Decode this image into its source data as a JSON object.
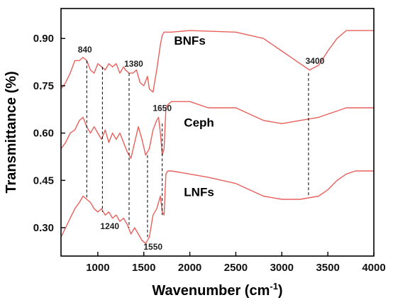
{
  "chart_data": {
    "type": "line",
    "xlabel": "Wavenumber (cm",
    "xlabel_superscript": "-1",
    "xlabel_suffix": ")",
    "ylabel": "Transmittance (%)",
    "xlim": [
      600,
      4000
    ],
    "ylim": [
      0.21,
      0.995
    ],
    "xticks": [
      1000,
      1500,
      2000,
      2500,
      3000,
      3500,
      4000
    ],
    "yticks": [
      0.3,
      0.45,
      0.6,
      0.75,
      0.9
    ],
    "ytick_labels": [
      "0.30",
      "0.45",
      "0.60",
      "0.75",
      "0.90"
    ],
    "grid": false,
    "line_color": "#e8605c",
    "series": [
      {
        "name": "BNFs",
        "x": [
          600,
          650,
          700,
          750,
          800,
          840,
          880,
          920,
          960,
          1000,
          1040,
          1080,
          1120,
          1160,
          1200,
          1240,
          1280,
          1300,
          1340,
          1380,
          1420,
          1460,
          1500,
          1540,
          1560,
          1600,
          1640,
          1680,
          1700,
          1720,
          1760,
          1800,
          2000,
          2500,
          2800,
          3000,
          3100,
          3200,
          3300,
          3400,
          3500,
          3600,
          3700,
          3800,
          4000
        ],
        "values": [
          0.74,
          0.76,
          0.79,
          0.83,
          0.83,
          0.84,
          0.83,
          0.8,
          0.79,
          0.82,
          0.81,
          0.8,
          0.82,
          0.81,
          0.82,
          0.79,
          0.81,
          0.8,
          0.79,
          0.79,
          0.8,
          0.76,
          0.75,
          0.78,
          0.74,
          0.73,
          0.8,
          0.88,
          0.91,
          0.92,
          0.92,
          0.92,
          0.925,
          0.92,
          0.9,
          0.86,
          0.84,
          0.82,
          0.8,
          0.815,
          0.86,
          0.9,
          0.925,
          0.925,
          0.925
        ]
      },
      {
        "name": "Ceph",
        "x": [
          600,
          650,
          700,
          750,
          800,
          840,
          880,
          920,
          960,
          1000,
          1040,
          1080,
          1120,
          1160,
          1200,
          1240,
          1280,
          1320,
          1360,
          1400,
          1440,
          1480,
          1520,
          1560,
          1600,
          1640,
          1660,
          1680,
          1700,
          1720,
          1740,
          1760,
          1800,
          2000,
          2200,
          2500,
          2800,
          3000,
          3200,
          3400,
          3500,
          3600,
          3700,
          3800,
          4000
        ],
        "values": [
          0.55,
          0.57,
          0.6,
          0.61,
          0.64,
          0.65,
          0.62,
          0.6,
          0.62,
          0.6,
          0.58,
          0.61,
          0.57,
          0.6,
          0.58,
          0.6,
          0.57,
          0.54,
          0.52,
          0.57,
          0.62,
          0.58,
          0.53,
          0.55,
          0.61,
          0.64,
          0.65,
          0.6,
          0.53,
          0.55,
          0.68,
          0.69,
          0.7,
          0.7,
          0.68,
          0.68,
          0.64,
          0.63,
          0.64,
          0.65,
          0.66,
          0.67,
          0.68,
          0.68,
          0.68
        ]
      },
      {
        "name": "LNFs",
        "x": [
          600,
          650,
          700,
          750,
          800,
          840,
          880,
          920,
          960,
          1000,
          1040,
          1080,
          1120,
          1160,
          1200,
          1240,
          1280,
          1320,
          1360,
          1400,
          1440,
          1480,
          1520,
          1560,
          1600,
          1640,
          1660,
          1680,
          1700,
          1720,
          1740,
          1760,
          1800,
          2000,
          2200,
          2500,
          2800,
          3000,
          3200,
          3400,
          3500,
          3600,
          3700,
          3800,
          4000
        ],
        "values": [
          0.27,
          0.3,
          0.33,
          0.36,
          0.38,
          0.4,
          0.39,
          0.38,
          0.36,
          0.35,
          0.36,
          0.34,
          0.35,
          0.33,
          0.34,
          0.32,
          0.33,
          0.31,
          0.28,
          0.3,
          0.28,
          0.26,
          0.25,
          0.27,
          0.34,
          0.36,
          0.38,
          0.4,
          0.35,
          0.34,
          0.47,
          0.48,
          0.48,
          0.47,
          0.46,
          0.44,
          0.4,
          0.39,
          0.39,
          0.4,
          0.42,
          0.45,
          0.47,
          0.48,
          0.48
        ]
      }
    ],
    "series_label_positions": [
      {
        "text": "BNFs",
        "x": 2000,
        "y": 0.88
      },
      {
        "text": "Ceph",
        "x": 2100,
        "y": 0.62
      },
      {
        "text": "LNFs",
        "x": 2100,
        "y": 0.4
      }
    ],
    "peak_markers": [
      {
        "x": 880,
        "y_top": 0.83,
        "y_bottom": 0.39
      },
      {
        "x": 1050,
        "y_top": 0.81,
        "y_bottom": 0.35
      },
      {
        "x": 1340,
        "y_top": 0.79,
        "y_bottom": 0.3
      },
      {
        "x": 1540,
        "y_top": 0.53,
        "y_bottom": 0.27
      },
      {
        "x": 1700,
        "y_top": 0.63,
        "y_bottom": 0.34
      },
      {
        "x": 3290,
        "y_top": 0.79,
        "y_bottom": 0.4
      }
    ],
    "peak_labels": [
      {
        "text": "840",
        "x": 860,
        "y": 0.855
      },
      {
        "text": "1380",
        "x": 1390,
        "y": 0.81
      },
      {
        "text": "1650",
        "x": 1700,
        "y": 0.67
      },
      {
        "text": "3400",
        "x": 3360,
        "y": 0.82
      },
      {
        "text": "1240",
        "x": 1130,
        "y": 0.295
      },
      {
        "text": "1550",
        "x": 1600,
        "y": 0.23
      }
    ]
  }
}
